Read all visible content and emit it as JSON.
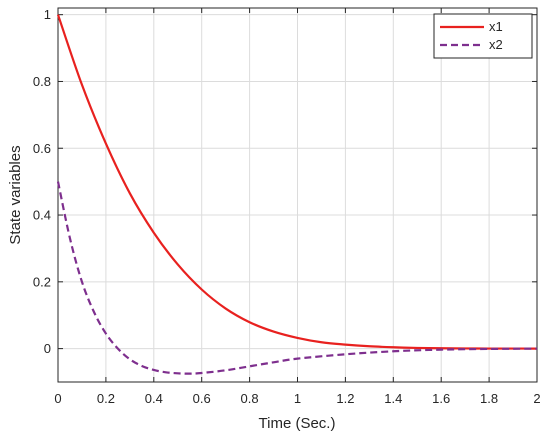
{
  "chart_data": {
    "type": "line",
    "xlabel": "Time (Sec.)",
    "ylabel": "State variables",
    "xlim": [
      0,
      2
    ],
    "ylim": [
      -0.1,
      1.02
    ],
    "xticks": [
      0,
      0.2,
      0.4,
      0.6,
      0.8,
      1,
      1.2,
      1.4,
      1.6,
      1.8,
      2
    ],
    "xtick_labels": [
      "0",
      "0.2",
      "0.4",
      "0.6",
      "0.8",
      "1",
      "1.2",
      "1.4",
      "1.6",
      "1.8",
      "2"
    ],
    "yticks": [
      0,
      0.2,
      0.4,
      0.6,
      0.8,
      1
    ],
    "ytick_labels": [
      "0",
      "0.2",
      "0.4",
      "0.6",
      "0.8",
      "1"
    ],
    "grid": true,
    "legend_position": "top-right",
    "series": [
      {
        "name": "x1",
        "color": "#e8211f",
        "style": "solid",
        "x": [
          0,
          0.1,
          0.2,
          0.3,
          0.4,
          0.5,
          0.6,
          0.7,
          0.8,
          0.9,
          1.0,
          1.1,
          1.2,
          1.3,
          1.4,
          1.5,
          1.6,
          1.7,
          1.8,
          1.9,
          2.0
        ],
        "y": [
          1.0,
          0.79,
          0.614,
          0.465,
          0.347,
          0.252,
          0.177,
          0.12,
          0.079,
          0.051,
          0.032,
          0.019,
          0.012,
          0.007,
          0.004,
          0.002,
          0.001,
          0.0005,
          0.0002,
          0.0001,
          0.0
        ]
      },
      {
        "name": "x2",
        "color": "#7e2f8e",
        "style": "dashed",
        "x": [
          0,
          0.05,
          0.1,
          0.15,
          0.2,
          0.25,
          0.3,
          0.35,
          0.4,
          0.45,
          0.5,
          0.55,
          0.6,
          0.7,
          0.8,
          0.9,
          1.0,
          1.2,
          1.4,
          1.6,
          1.8,
          2.0
        ],
        "y": [
          0.5,
          0.33,
          0.2,
          0.11,
          0.045,
          0.0,
          -0.032,
          -0.052,
          -0.064,
          -0.071,
          -0.074,
          -0.075,
          -0.073,
          -0.065,
          -0.053,
          -0.041,
          -0.03,
          -0.017,
          -0.008,
          -0.003,
          -0.001,
          0.0
        ]
      }
    ]
  }
}
